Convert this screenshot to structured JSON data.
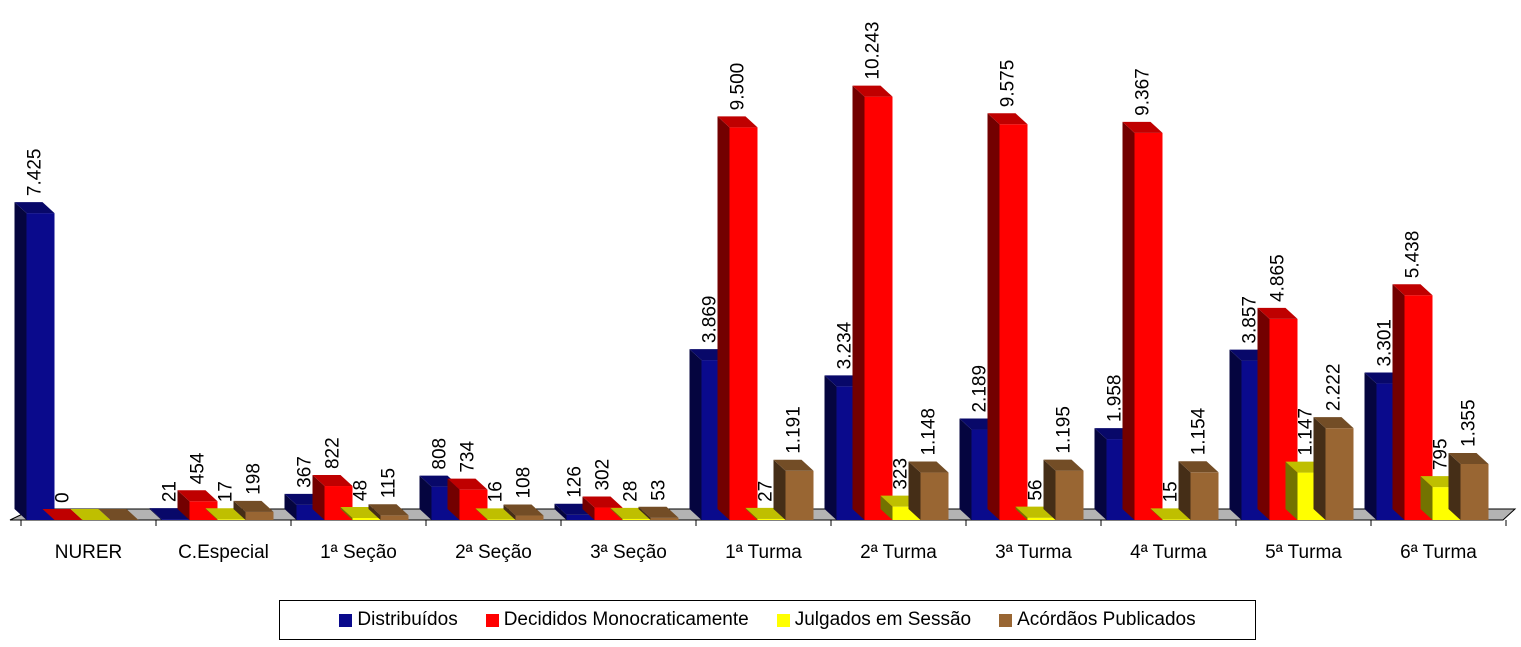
{
  "chart_data": {
    "type": "bar",
    "title": "",
    "xlabel": "",
    "ylabel": "",
    "ylim": [
      0,
      10500
    ],
    "grid": false,
    "legend_position": "bottom",
    "three_d": true,
    "categories": [
      "NURER",
      "C.Especial",
      "1ª Seção",
      "2ª Seção",
      "3ª Seção",
      "1ª Turma",
      "2ª Turma",
      "3ª Turma",
      "4ª Turma",
      "5ª Turma",
      "6ª Turma"
    ],
    "series": [
      {
        "name": "Distribuídos",
        "color": "#0a0a8c",
        "values": [
          7425,
          21,
          367,
          808,
          126,
          3869,
          3234,
          2189,
          1958,
          3857,
          3301
        ],
        "labels": [
          "7.425",
          "21",
          "367",
          "808",
          "126",
          "3.869",
          "3.234",
          "2.189",
          "1.958",
          "3.857",
          "3.301"
        ]
      },
      {
        "name": "Decididos Monocraticamente",
        "color": "#ff0000",
        "values": [
          0,
          454,
          822,
          734,
          302,
          9500,
          10243,
          9575,
          9367,
          4865,
          5438
        ],
        "labels": [
          "0",
          "454",
          "822",
          "734",
          "302",
          "9.500",
          "10.243",
          "9.575",
          "9.367",
          "4.865",
          "5.438"
        ]
      },
      {
        "name": "Julgados em Sessão",
        "color": "#ffff00",
        "values": [
          0,
          17,
          48,
          16,
          28,
          27,
          323,
          56,
          15,
          1147,
          795
        ],
        "labels": [
          "",
          "17",
          "48",
          "16",
          "28",
          "27",
          "323",
          "56",
          "15",
          "1.147",
          "795"
        ]
      },
      {
        "name": "Acórdãos Publicados",
        "color": "#996633",
        "values": [
          0,
          198,
          115,
          108,
          53,
          1191,
          1148,
          1195,
          1154,
          2222,
          1355
        ],
        "labels": [
          "",
          "198",
          "115",
          "108",
          "53",
          "1.191",
          "1.148",
          "1.195",
          "1.154",
          "2.222",
          "1.355"
        ]
      }
    ]
  }
}
